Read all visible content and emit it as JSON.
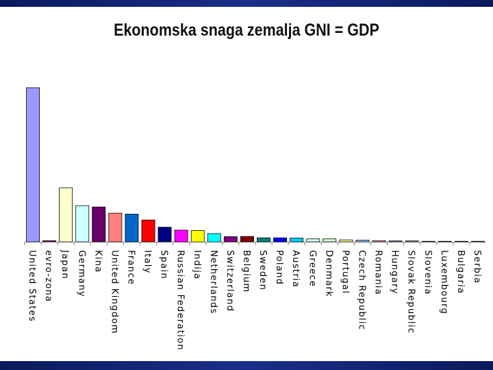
{
  "colors": {
    "band": "#1b2f8a",
    "axis": "#808080",
    "bar_stroke": "#000000"
  },
  "chart_data": {
    "type": "bar",
    "title": "Ekonomska snaga zemalja GNI = GDP",
    "xlabel": "",
    "ylabel": "",
    "ylim": [
      0,
      100
    ],
    "grid": false,
    "legend": "none",
    "categories": [
      "United States",
      "evro-zona",
      "Japan",
      "Germany",
      "Kina",
      "United Kingdom",
      "France",
      "Italy",
      "Spain",
      "Russian Federation",
      "Indija",
      "Netherlands",
      "Switzerland",
      "Belgium",
      "Sweden",
      "Poland",
      "Austria",
      "Greece",
      "Denmark",
      "Portugal",
      "Czech Republic",
      "Romania",
      "Hungary",
      "Slovak Republic",
      "Slovenia",
      "Luxembourg",
      "Bulgaria",
      "Serbia"
    ],
    "values": [
      100,
      0.8,
      35.1,
      23.5,
      22.6,
      18.6,
      18.0,
      14.2,
      9.5,
      7.6,
      7.4,
      5.4,
      3.4,
      3.5,
      2.6,
      2.6,
      2.5,
      1.9,
      1.9,
      1.3,
      1.1,
      0.8,
      0.6,
      0.6,
      0.1,
      0.1,
      0.1,
      0.1
    ],
    "bar_colors": [
      "#9999ff",
      "#993366",
      "#ffffcc",
      "#ccffff",
      "#660066",
      "#ff8080",
      "#0066cc",
      "#ff0000",
      "#000080",
      "#ff00ff",
      "#ffff00",
      "#00ffff",
      "#800080",
      "#800000",
      "#008080",
      "#0000ff",
      "#00ccff",
      "#ccffff",
      "#ccffcc",
      "#ffff99",
      "#99ccff",
      "#ff99cc",
      "#cc99ff",
      "#ffcc99",
      "#3366ff",
      "#33cccc",
      "#99cc00",
      "#ffcc00"
    ]
  }
}
